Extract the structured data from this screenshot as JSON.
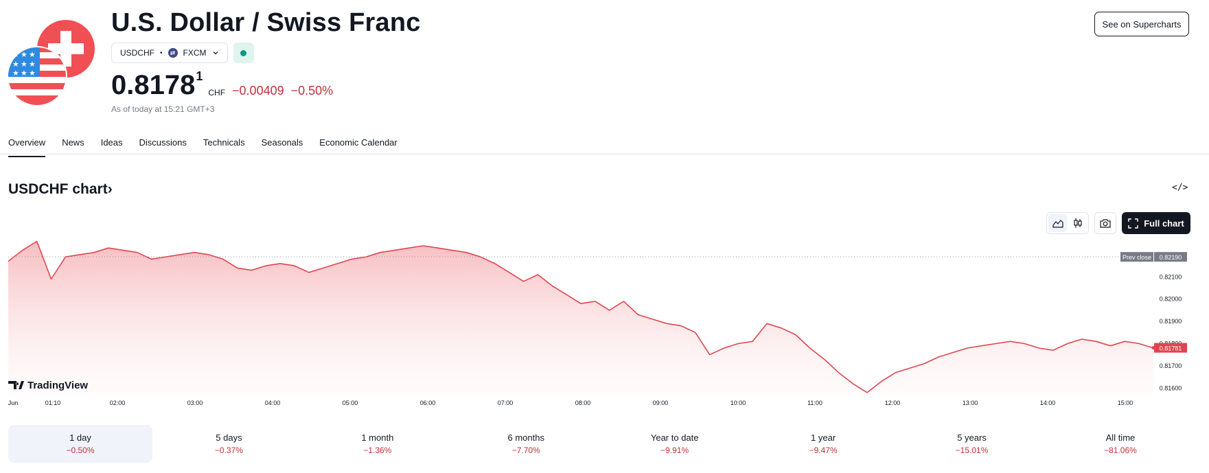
{
  "header": {
    "title": "U.S. Dollar / Swiss Franc",
    "symbol": "USDCHF",
    "exchange": "FXCM",
    "separator": "•",
    "price_main": "0.8178",
    "price_sup": "1",
    "currency": "CHF",
    "change_abs": "−0.00409",
    "change_pct": "−0.50%",
    "as_of": "As of today at 15:21 GMT+3",
    "supercharts_label": "See on Supercharts",
    "market_status_color": "#089981"
  },
  "tabs": [
    "Overview",
    "News",
    "Ideas",
    "Discussions",
    "Technicals",
    "Seasonals",
    "Economic Calendar"
  ],
  "chart_section": {
    "title": "USDCHF chart",
    "title_arrow": "›",
    "embed_icon": "</>",
    "full_chart_label": "Full chart",
    "watermark": "TradingView"
  },
  "chart_data": {
    "type": "area",
    "x_ticks": [
      "Jun",
      "01:10",
      "02:00",
      "03:00",
      "04:00",
      "05:00",
      "06:00",
      "07:00",
      "08:00",
      "09:00",
      "10:00",
      "11:00",
      "12:00",
      "13:00",
      "14:00",
      "15:00"
    ],
    "y_ticks": [
      "0.82100",
      "0.82000",
      "0.81900",
      "0.81800",
      "0.81700",
      "0.81600"
    ],
    "ylim": [
      0.8157,
      0.8228
    ],
    "prev_close": {
      "label": "Prev close",
      "value": 0.8219,
      "value_label": "0.82190"
    },
    "last_price": {
      "value": 0.81781,
      "value_label": "0.81781"
    },
    "series": [
      {
        "values": [
          0.8217,
          0.8222,
          0.8226,
          0.8209,
          0.8219,
          0.822,
          0.8221,
          0.8223,
          0.8222,
          0.8221,
          0.8218,
          0.8219,
          0.822,
          0.8221,
          0.822,
          0.8218,
          0.8214,
          0.8213,
          0.8215,
          0.8216,
          0.8215,
          0.8212,
          0.8214,
          0.8216,
          0.8218,
          0.8219,
          0.8221,
          0.8222,
          0.8223,
          0.8224,
          0.8223,
          0.8222,
          0.8221,
          0.8219,
          0.8216,
          0.8212,
          0.8208,
          0.8211,
          0.8206,
          0.8202,
          0.8198,
          0.8199,
          0.8195,
          0.8199,
          0.8193,
          0.8191,
          0.8189,
          0.8188,
          0.8185,
          0.8175,
          0.8178,
          0.818,
          0.8181,
          0.8189,
          0.8187,
          0.8184,
          0.8178,
          0.8173,
          0.8167,
          0.8162,
          0.8158,
          0.8163,
          0.8167,
          0.8169,
          0.8171,
          0.8174,
          0.8176,
          0.8178,
          0.8179,
          0.818,
          0.8181,
          0.818,
          0.8178,
          0.8177,
          0.818,
          0.8182,
          0.8181,
          0.8179,
          0.8181,
          0.818,
          0.8178
        ]
      }
    ],
    "grid": false,
    "color": "#e0454f"
  },
  "periods": [
    {
      "label": "1 day",
      "value": "−0.50%"
    },
    {
      "label": "5 days",
      "value": "−0.37%"
    },
    {
      "label": "1 month",
      "value": "−1.36%"
    },
    {
      "label": "6 months",
      "value": "−7.70%"
    },
    {
      "label": "Year to date",
      "value": "−9.91%"
    },
    {
      "label": "1 year",
      "value": "−9.47%"
    },
    {
      "label": "5 years",
      "value": "−15.01%"
    },
    {
      "label": "All time",
      "value": "−81.06%"
    }
  ],
  "colors": {
    "negative": "#c2313a",
    "accent_dark": "#131722"
  },
  "icons": {
    "flags": "us-ch-flags-icon",
    "chevron": "chevron-down-icon",
    "camera": "camera-icon",
    "fullscreen": "fullscreen-icon",
    "area": "area-chart-icon",
    "candles": "candles-icon"
  }
}
